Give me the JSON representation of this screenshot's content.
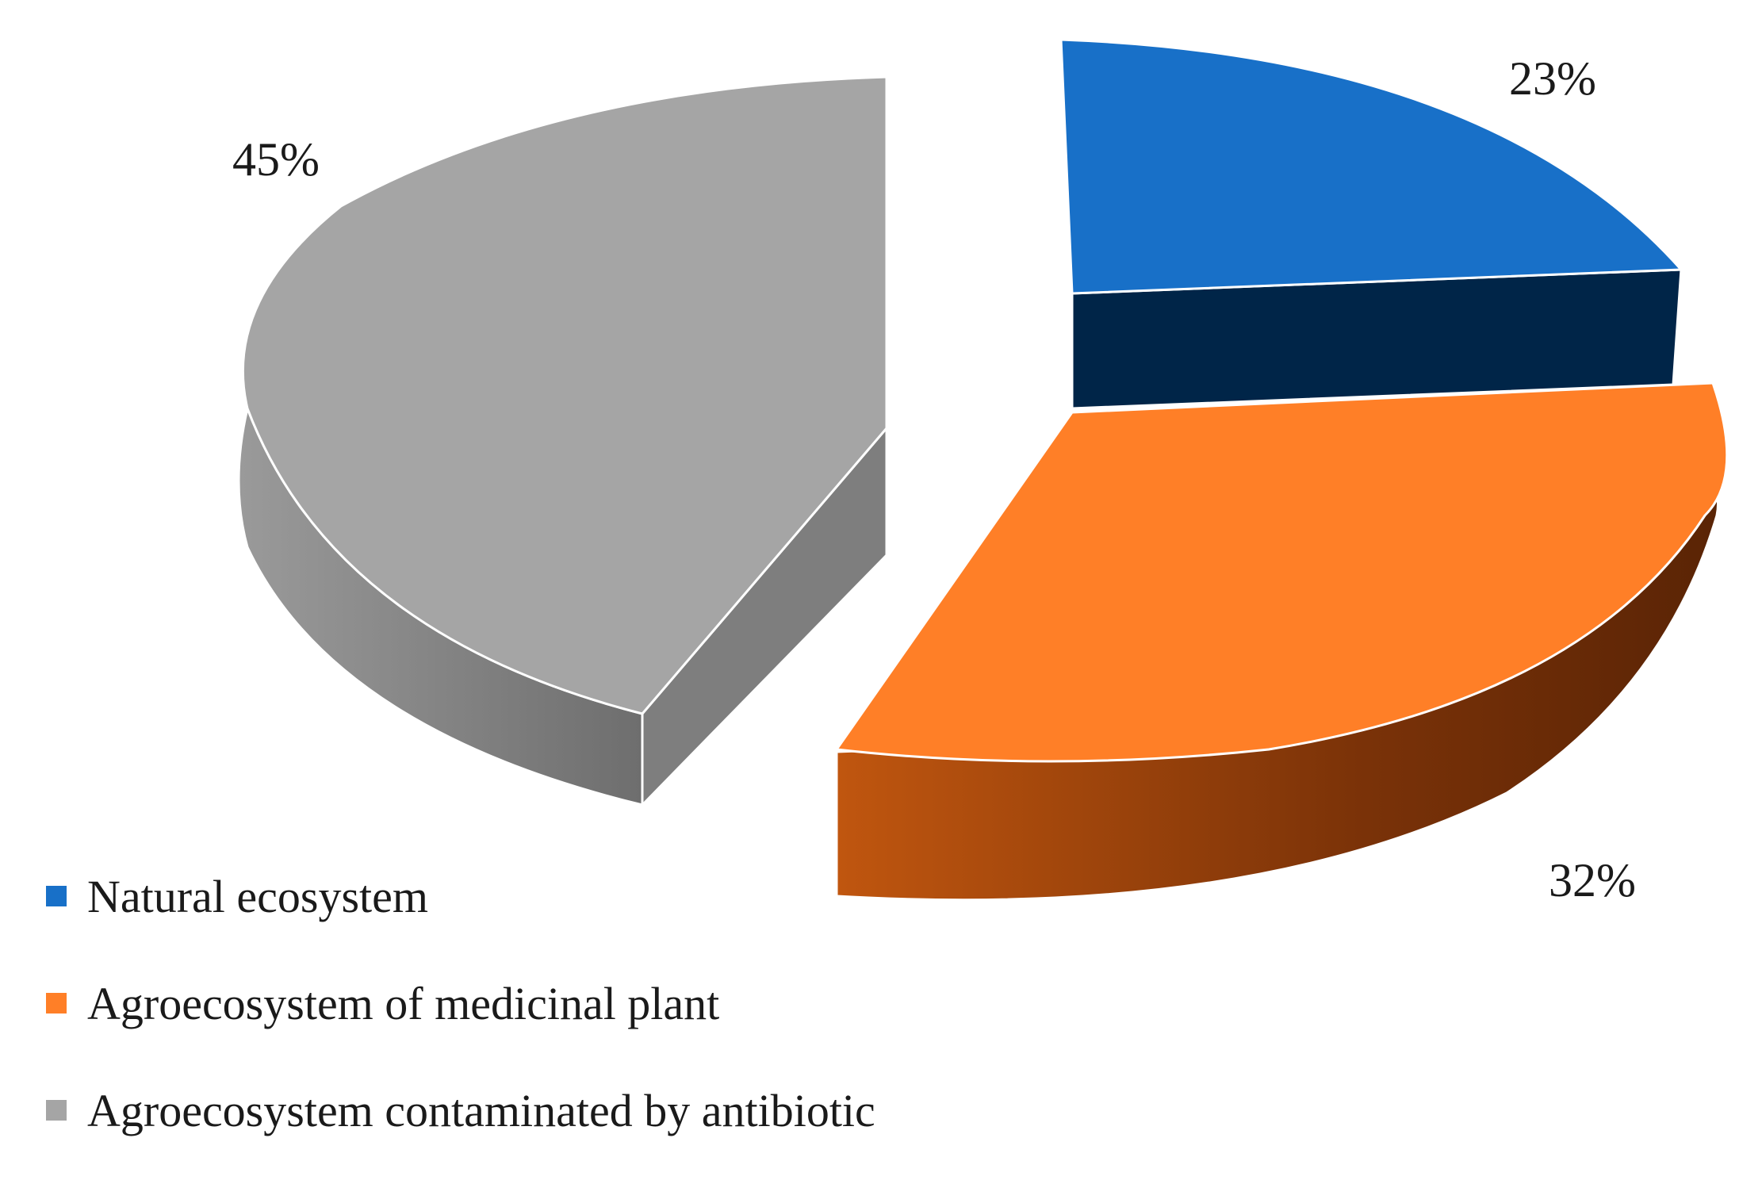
{
  "chart_data": {
    "type": "pie",
    "style": "3d-exploded",
    "slices": [
      {
        "name": "Natural ecosystem",
        "value": 23,
        "label": "23%",
        "color": "#1870C8",
        "side_color": "#002548"
      },
      {
        "name": "Agroecosystem of medicinal plant",
        "value": 32,
        "label": "32%",
        "color": "#FF7F27",
        "side_color": "#8A3A0C"
      },
      {
        "name": "Agroecosystem contaminated by antibiotic",
        "value": 45,
        "label": "45%",
        "color": "#A5A5A5",
        "side_color": "#7A7A7A"
      }
    ],
    "legend_position": "bottom-left"
  }
}
